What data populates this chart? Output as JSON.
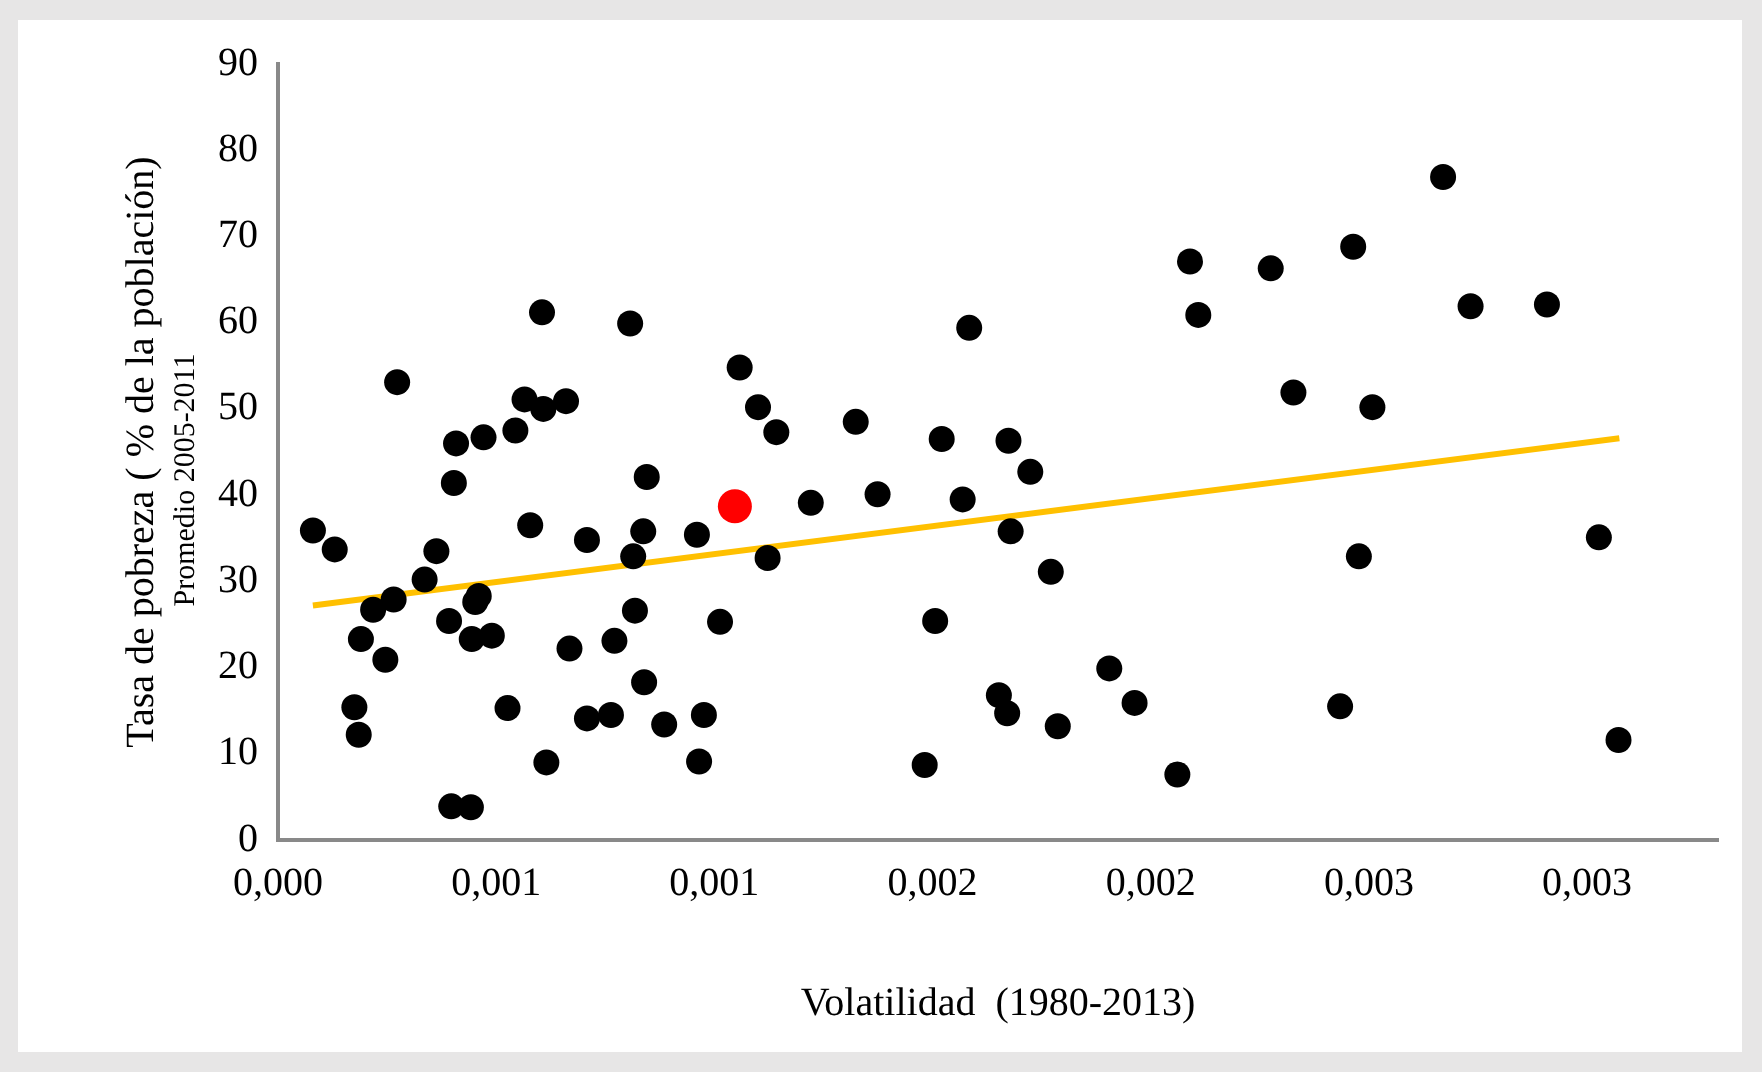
{
  "chart_data": {
    "type": "scatter",
    "xlabel": "Volatilidad  (1980-2013)",
    "ylabel": "Tasa de pobreza ( % de la población)",
    "annotations": [
      "Promedio 2005-2011"
    ],
    "xlim": [
      0,
      0.0033
    ],
    "xticks": [
      {
        "value": 0,
        "label": "0,000"
      },
      {
        "value": 0.0005,
        "label": "0,001"
      },
      {
        "value": 0.001,
        "label": "0,001"
      },
      {
        "value": 0.0015,
        "label": "0,002"
      },
      {
        "value": 0.002,
        "label": "0,002"
      },
      {
        "value": 0.0025,
        "label": "0,003"
      },
      {
        "value": 0.003,
        "label": "0,003"
      }
    ],
    "ylim": [
      0,
      90
    ],
    "yticks": [
      0,
      10,
      20,
      30,
      40,
      50,
      60,
      70,
      80,
      90
    ],
    "grid": false,
    "legend": false,
    "marker": "circle",
    "series": [
      {
        "color": "#000000",
        "x": [
          8e-05,
          0.00013,
          0.000175,
          0.000185,
          0.00019,
          0.000218,
          0.000246,
          0.000265,
          0.000336,
          0.000363,
          0.000392,
          0.000403,
          0.000397,
          0.000442,
          0.000444,
          0.00046,
          0.000452,
          0.00049,
          0.000526,
          0.000578,
          0.000615,
          0.000668,
          0.000708,
          0.000708,
          0.000763,
          0.000771,
          0.000814,
          0.000818,
          0.000837,
          0.000845,
          0.000839,
          0.000885,
          0.00096,
          0.000965,
          0.000976,
          0.001013,
          0.001122,
          0.001221,
          0.001374,
          0.001482,
          0.001506,
          0.000273,
          0.000408,
          0.000471,
          0.000544,
          0.000565,
          0.000608,
          0.00066,
          0.000605,
          0.000807,
          0.001058,
          0.0011,
          0.001142,
          0.001324,
          0.001521,
          0.001584,
          0.001569,
          0.001674,
          0.001724,
          0.00209,
          0.002109,
          0.002275,
          0.002464,
          0.00267,
          0.002733,
          0.002908,
          0.002327,
          0.002508,
          0.001679,
          0.001771,
          0.001652,
          0.001671,
          0.001787,
          0.001905,
          0.001963,
          0.002061,
          0.002477,
          0.002434,
          0.003027,
          0.003072
        ],
        "values": [
          35.9,
          33.7,
          15.4,
          12.2,
          23.3,
          26.7,
          20.9,
          27.9,
          30.2,
          33.5,
          25.4,
          41.4,
          3.9,
          3.8,
          23.3,
          28.3,
          27.6,
          23.7,
          15.3,
          36.5,
          9.0,
          22.2,
          14.1,
          34.8,
          14.5,
          23.1,
          32.9,
          26.6,
          35.8,
          42.1,
          18.3,
          13.4,
          35.4,
          9.1,
          14.5,
          25.3,
          32.7,
          39.1,
          40.1,
          8.7,
          25.4,
          53.1,
          46.0,
          46.7,
          47.5,
          51.1,
          50.0,
          50.9,
          61.2,
          59.9,
          54.8,
          50.2,
          47.3,
          48.5,
          46.5,
          59.4,
          39.5,
          46.3,
          42.7,
          67.1,
          60.9,
          66.3,
          68.8,
          76.9,
          61.9,
          62.1,
          51.9,
          50.2,
          35.8,
          31.1,
          16.8,
          14.7,
          13.2,
          19.9,
          15.9,
          7.6,
          32.9,
          15.5,
          35.1,
          11.6
        ]
      },
      {
        "color": "#ff0000",
        "x": [
          0.001047
        ],
        "values": [
          38.7
        ]
      },
      {
        "type": "line",
        "color": "#ffc000",
        "line_style": "solid",
        "marker": "none",
        "x": [
          8e-05,
          0.003074
        ],
        "values": [
          27.2,
          46.6
        ]
      }
    ]
  }
}
